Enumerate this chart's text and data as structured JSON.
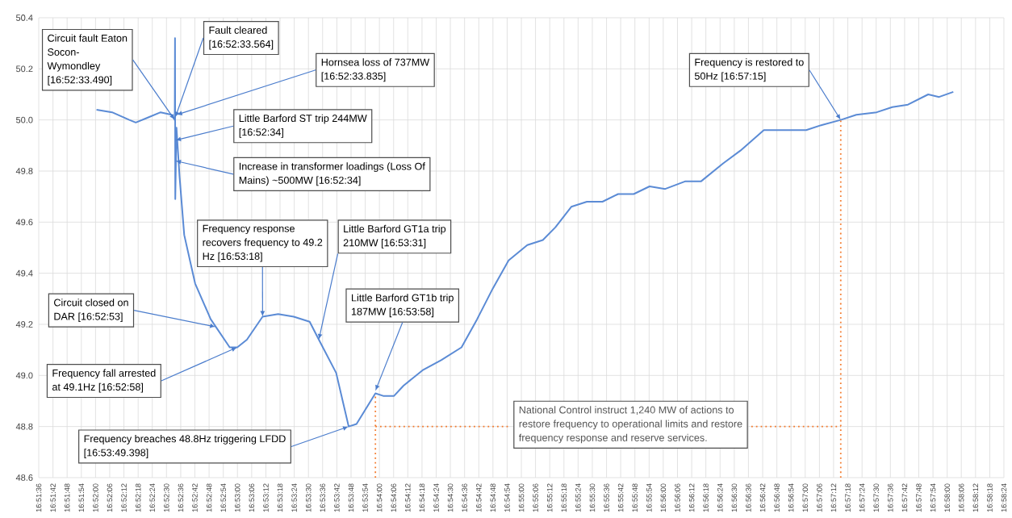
{
  "chart_data": {
    "type": "line",
    "xlim": [
      16.86,
      16.97333
    ],
    "ylim": [
      48.6,
      50.4
    ],
    "yticks": [
      48.6,
      48.8,
      {
        "value": 49.0,
        "label": "49.0"
      },
      49.2,
      49.4,
      49.6,
      49.8,
      {
        "value": 50.0,
        "label": "50.0"
      },
      50.2,
      50.4
    ],
    "xticks": [
      {
        "value": 16.86,
        "label": "16:51:36"
      },
      {
        "value": 16.86167,
        "label": "16:51:42"
      },
      {
        "value": 16.86333,
        "label": "16:51:48"
      },
      {
        "value": 16.865,
        "label": "16:51:54"
      },
      {
        "value": 16.86667,
        "label": "16:52:00"
      },
      {
        "value": 16.86833,
        "label": "16:52:06"
      },
      {
        "value": 16.87,
        "label": "16:52:12"
      },
      {
        "value": 16.87167,
        "label": "16:52:18"
      },
      {
        "value": 16.87333,
        "label": "16:52:24"
      },
      {
        "value": 16.875,
        "label": "16:52:30"
      },
      {
        "value": 16.87667,
        "label": "16:52:36"
      },
      {
        "value": 16.87833,
        "label": "16:52:42"
      },
      {
        "value": 16.88,
        "label": "16:52:48"
      },
      {
        "value": 16.88167,
        "label": "16:52:54"
      },
      {
        "value": 16.88333,
        "label": "16:53:00"
      },
      {
        "value": 16.885,
        "label": "16:53:06"
      },
      {
        "value": 16.88667,
        "label": "16:53:12"
      },
      {
        "value": 16.88833,
        "label": "16:53:18"
      },
      {
        "value": 16.89,
        "label": "16:53:24"
      },
      {
        "value": 16.89167,
        "label": "16:53:30"
      },
      {
        "value": 16.89333,
        "label": "16:53:36"
      },
      {
        "value": 16.895,
        "label": "16:53:42"
      },
      {
        "value": 16.89667,
        "label": "16:53:48"
      },
      {
        "value": 16.89833,
        "label": "16:53:54"
      },
      {
        "value": 16.9,
        "label": "16:54:00"
      },
      {
        "value": 16.90167,
        "label": "16:54:06"
      },
      {
        "value": 16.90333,
        "label": "16:54:12"
      },
      {
        "value": 16.905,
        "label": "16:54:18"
      },
      {
        "value": 16.90667,
        "label": "16:54:24"
      },
      {
        "value": 16.90833,
        "label": "16:54:30"
      },
      {
        "value": 16.91,
        "label": "16:54:36"
      },
      {
        "value": 16.91167,
        "label": "16:54:42"
      },
      {
        "value": 16.91333,
        "label": "16:54:48"
      },
      {
        "value": 16.915,
        "label": "16:54:54"
      },
      {
        "value": 16.91667,
        "label": "16:55:00"
      },
      {
        "value": 16.91833,
        "label": "16:55:06"
      },
      {
        "value": 16.92,
        "label": "16:55:12"
      },
      {
        "value": 16.92167,
        "label": "16:55:18"
      },
      {
        "value": 16.92333,
        "label": "16:55:24"
      },
      {
        "value": 16.925,
        "label": "16:55:30"
      },
      {
        "value": 16.92667,
        "label": "16:55:36"
      },
      {
        "value": 16.92833,
        "label": "16:55:42"
      },
      {
        "value": 16.93,
        "label": "16:55:48"
      },
      {
        "value": 16.93167,
        "label": "16:55:54"
      },
      {
        "value": 16.93333,
        "label": "16:56:00"
      },
      {
        "value": 16.935,
        "label": "16:56:06"
      },
      {
        "value": 16.93667,
        "label": "16:56:12"
      },
      {
        "value": 16.93833,
        "label": "16:56:18"
      },
      {
        "value": 16.94,
        "label": "16:56:24"
      },
      {
        "value": 16.94167,
        "label": "16:56:30"
      },
      {
        "value": 16.94333,
        "label": "16:56:36"
      },
      {
        "value": 16.945,
        "label": "16:56:42"
      },
      {
        "value": 16.94667,
        "label": "16:56:48"
      },
      {
        "value": 16.94833,
        "label": "16:56:54"
      },
      {
        "value": 16.95,
        "label": "16:57:00"
      },
      {
        "value": 16.95167,
        "label": "16:57:06"
      },
      {
        "value": 16.95333,
        "label": "16:57:12"
      },
      {
        "value": 16.955,
        "label": "16:57:18"
      },
      {
        "value": 16.95667,
        "label": "16:57:24"
      },
      {
        "value": 16.95833,
        "label": "16:57:30"
      },
      {
        "value": 16.96,
        "label": "16:57:36"
      },
      {
        "value": 16.96167,
        "label": "16:57:42"
      },
      {
        "value": 16.96333,
        "label": "16:57:48"
      },
      {
        "value": 16.965,
        "label": "16:57:54"
      },
      {
        "value": 16.96667,
        "label": "16:58:00"
      },
      {
        "value": 16.96833,
        "label": "16:58:06"
      },
      {
        "value": 16.97,
        "label": "16:58:12"
      },
      {
        "value": 16.97167,
        "label": "16:58:18"
      },
      {
        "value": 16.97333,
        "label": "16:58:24"
      }
    ],
    "grid": true,
    "marker": "none",
    "series": [
      {
        "color": "#5b8bd5",
        "line_style": "solid",
        "x": [
          16.86678,
          16.86861,
          16.87064,
          16.87139,
          16.87286,
          16.87431,
          16.87561,
          16.87597,
          16.876,
          16.87603,
          16.87617,
          16.87653,
          16.87708,
          16.87836,
          16.88019,
          16.88242,
          16.88331,
          16.88444,
          16.88628,
          16.88811,
          16.88994,
          16.89181,
          16.89289,
          16.89492,
          16.89639,
          16.89731,
          16.89953,
          16.90044,
          16.90172,
          16.90283,
          16.90506,
          16.90725,
          16.90964,
          16.91147,
          16.91331,
          16.91517,
          16.91736,
          16.91919,
          16.92067,
          16.92253,
          16.92436,
          16.92619,
          16.92803,
          16.92986,
          16.93172,
          16.93356,
          16.93594,
          16.93778,
          16.94036,
          16.94239,
          16.94514,
          16.94697,
          16.95011,
          16.95194,
          16.95417,
          16.956,
          16.95839,
          16.96022,
          16.96206,
          16.96444,
          16.96572,
          16.96739
        ],
        "values": [
          50.04,
          50.03,
          50.0,
          49.99,
          50.01,
          50.03,
          50.02,
          50.0,
          50.32,
          49.69,
          49.97,
          49.78,
          49.55,
          49.36,
          49.22,
          49.11,
          49.11,
          49.14,
          49.23,
          49.24,
          49.23,
          49.21,
          49.14,
          49.01,
          48.8,
          48.81,
          48.93,
          48.92,
          48.92,
          48.96,
          49.02,
          49.06,
          49.11,
          49.22,
          49.34,
          49.45,
          49.51,
          49.53,
          49.58,
          49.66,
          49.68,
          49.68,
          49.71,
          49.71,
          49.74,
          49.73,
          49.76,
          49.76,
          49.83,
          49.88,
          49.96,
          49.96,
          49.96,
          49.98,
          50.0,
          50.02,
          50.03,
          50.05,
          50.06,
          50.1,
          50.09,
          50.11
        ]
      },
      {
        "color": "#f4792b",
        "line_style": "dotted",
        "x": [
          16.89953,
          16.89953,
          null,
          16.89953,
          16.91517,
          null,
          16.94367,
          16.95417,
          null,
          16.95417,
          16.95417
        ],
        "values": [
          48.6,
          48.93,
          null,
          48.8,
          48.8,
          null,
          48.8,
          48.8,
          null,
          48.6,
          50.0
        ]
      }
    ],
    "annotations": [
      {
        "text": "Circuit fault Eaton Socon-Wymondley [16:52:33.490]",
        "x": 16.87597,
        "y": 50.0
      },
      {
        "text": "Fault cleared [16:52:33.564]",
        "x": 16.87603,
        "y": 50.01
      },
      {
        "text": "Hornsea loss of 737MW [16:52:33.835]",
        "x": 16.87617,
        "y": 50.02
      },
      {
        "text": "Little Barford ST trip 244MW [16:52:34]",
        "x": 16.87603,
        "y": 49.92
      },
      {
        "text": "Increase in transformer loadings (Loss Of Mains) ~500MW [16:52:34]",
        "x": 16.87603,
        "y": 49.84
      },
      {
        "text": "Frequency response recovers frequency to 49.2 Hz [16:53:18]",
        "x": 16.88628,
        "y": 49.23
      },
      {
        "text": "Little Barford GT1a trip 210MW [16:53:31]",
        "x": 16.89289,
        "y": 49.14
      },
      {
        "text": "Little Barford GT1b trip 187MW [16:53:58]",
        "x": 16.89953,
        "y": 48.94
      },
      {
        "text": "Circuit closed on DAR [16:52:53]",
        "x": 16.88078,
        "y": 49.19
      },
      {
        "text": "Frequency fall arrested at 49.1Hz [16:52:58]",
        "x": 16.88331,
        "y": 49.11
      },
      {
        "text": "Frequency breaches 48.8Hz triggering LFDD [16:53:49.398]",
        "x": 16.89639,
        "y": 48.8
      },
      {
        "text": "Frequency is restored to 50Hz [16:57:15]",
        "x": 16.95417,
        "y": 50.0
      },
      "National Control instruct 1,240 MW of actions to restore frequency to operational limits and restore frequency response and reserve services."
    ]
  }
}
